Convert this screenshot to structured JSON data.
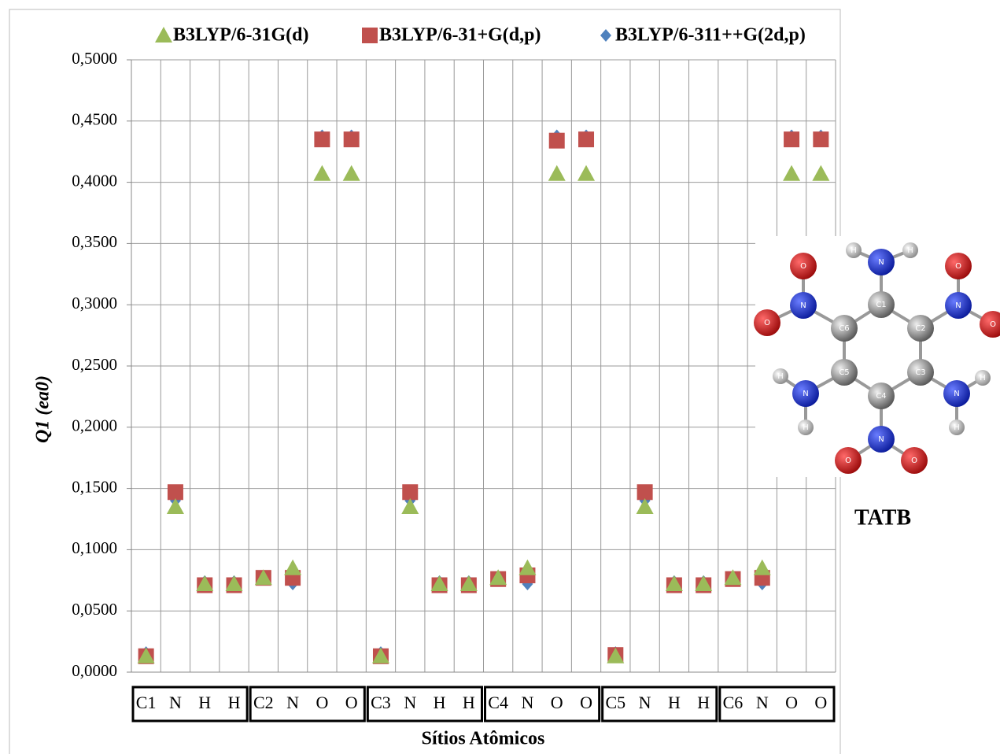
{
  "chart_data": {
    "type": "scatter",
    "xlabel": "Sítios Atômicos",
    "ylabel": "Q1 (ea0)",
    "categories": [
      "C1",
      "N",
      "H",
      "H",
      "C2",
      "N",
      "O",
      "O",
      "C3",
      "N",
      "H",
      "H",
      "C4",
      "N",
      "O",
      "O",
      "C5",
      "N",
      "H",
      "H",
      "C6",
      "N",
      "O",
      "O"
    ],
    "series": [
      {
        "name": "B3LYP/6-31G(d)",
        "color": "#9bbb59",
        "marker": "triangle",
        "values": [
          0.013,
          0.135,
          0.072,
          0.072,
          0.077,
          0.085,
          0.407,
          0.407,
          0.013,
          0.135,
          0.072,
          0.072,
          0.077,
          0.085,
          0.407,
          0.407,
          0.013,
          0.135,
          0.072,
          0.072,
          0.077,
          0.085,
          0.407,
          0.407
        ]
      },
      {
        "name": "B3LYP/6-31+G(d,p)",
        "color": "#c0504d",
        "marker": "square",
        "values": [
          0.013,
          0.147,
          0.071,
          0.071,
          0.077,
          0.077,
          0.435,
          0.435,
          0.013,
          0.147,
          0.071,
          0.071,
          0.076,
          0.079,
          0.434,
          0.435,
          0.014,
          0.147,
          0.071,
          0.071,
          0.076,
          0.077,
          0.435,
          0.435
        ]
      },
      {
        "name": "B3LYP/6-311++G(2d,p)",
        "color": "#4f81bd",
        "marker": "diamond",
        "values": [
          0.016,
          0.14,
          0.074,
          0.074,
          0.078,
          0.072,
          0.438,
          0.438,
          0.016,
          0.14,
          0.074,
          0.074,
          0.078,
          0.072,
          0.438,
          0.438,
          0.016,
          0.14,
          0.074,
          0.074,
          0.078,
          0.072,
          0.438,
          0.438
        ]
      }
    ],
    "ylim": [
      0,
      0.5
    ],
    "yticks": [
      {
        "value": 0,
        "label": "0,0000"
      },
      {
        "value": 0.05,
        "label": "0,0500"
      },
      {
        "value": 0.1,
        "label": "0,1000"
      },
      {
        "value": 0.15,
        "label": "0,1500"
      },
      {
        "value": 0.2,
        "label": "0,2000"
      },
      {
        "value": 0.25,
        "label": "0,2500"
      },
      {
        "value": 0.3,
        "label": "0,3000"
      },
      {
        "value": 0.35,
        "label": "0,3500"
      },
      {
        "value": 0.4,
        "label": "0,4000"
      },
      {
        "value": 0.45,
        "label": "0,4500"
      },
      {
        "value": 0.5,
        "label": "0,5000"
      }
    ],
    "grid": true,
    "legend": "top"
  },
  "inset": {
    "title": "TATB",
    "atoms": [
      "C1",
      "C2",
      "C3",
      "C4",
      "C5",
      "C6",
      "N",
      "N",
      "N",
      "N",
      "N",
      "N",
      "O",
      "O",
      "O",
      "O",
      "O",
      "O",
      "H",
      "H",
      "H",
      "H",
      "H",
      "H"
    ]
  }
}
